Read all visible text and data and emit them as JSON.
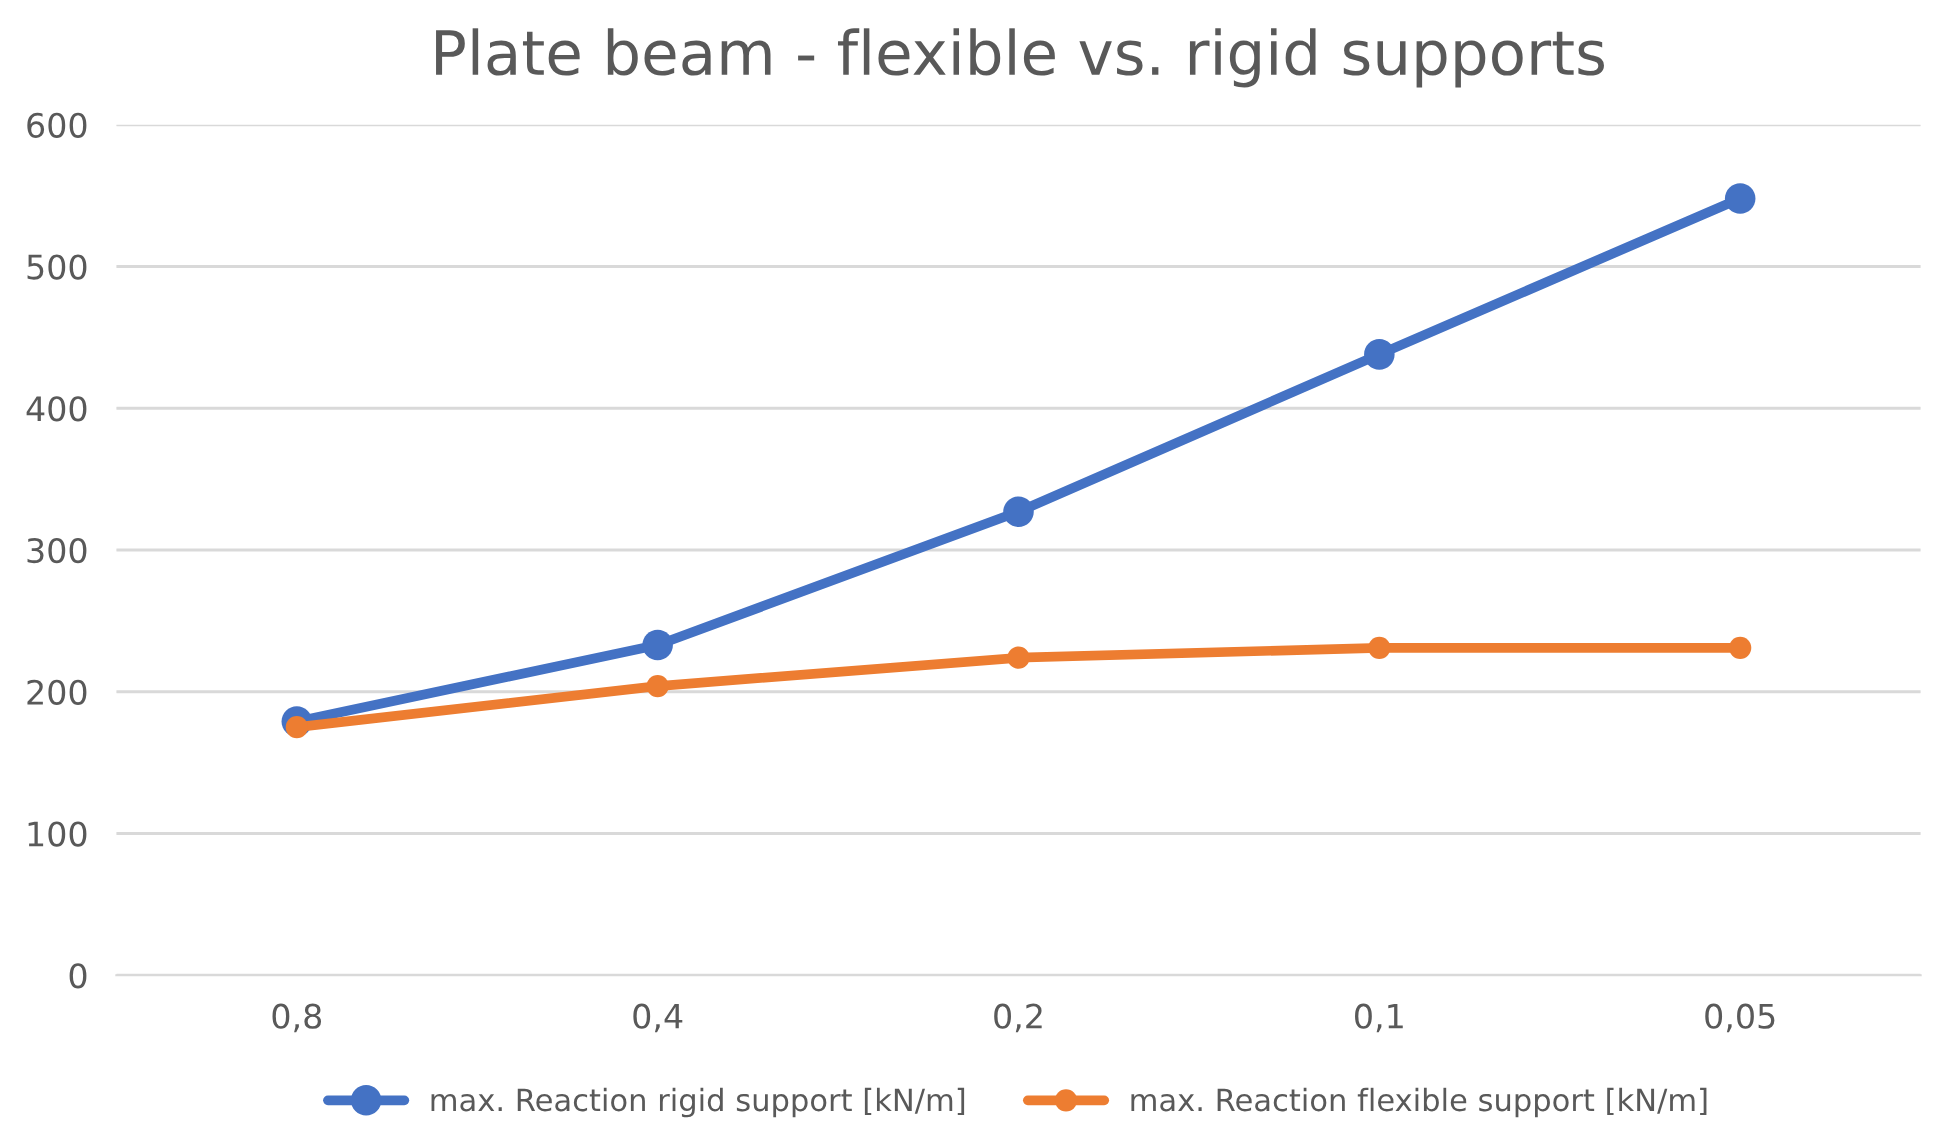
{
  "chart_data": {
    "type": "line",
    "title": "Plate beam - flexible vs. rigid supports",
    "categories": [
      "0,8",
      "0,4",
      "0,2",
      "0,1",
      "0,05"
    ],
    "series": [
      {
        "name": "max. Reaction rigid support [kN/m]",
        "color": "#4472c4",
        "values": [
          179,
          233,
          327,
          438,
          548
        ]
      },
      {
        "name": "max. Reaction flexible support [kN/m]",
        "color": "#ed7d31",
        "values": [
          175,
          204,
          224,
          231,
          231
        ]
      }
    ],
    "ylim": [
      0,
      600
    ],
    "yticks": [
      0,
      100,
      200,
      300,
      400,
      500,
      600
    ],
    "grid": "y",
    "legend": "bottom",
    "marker": "circle",
    "line_style": "solid"
  }
}
